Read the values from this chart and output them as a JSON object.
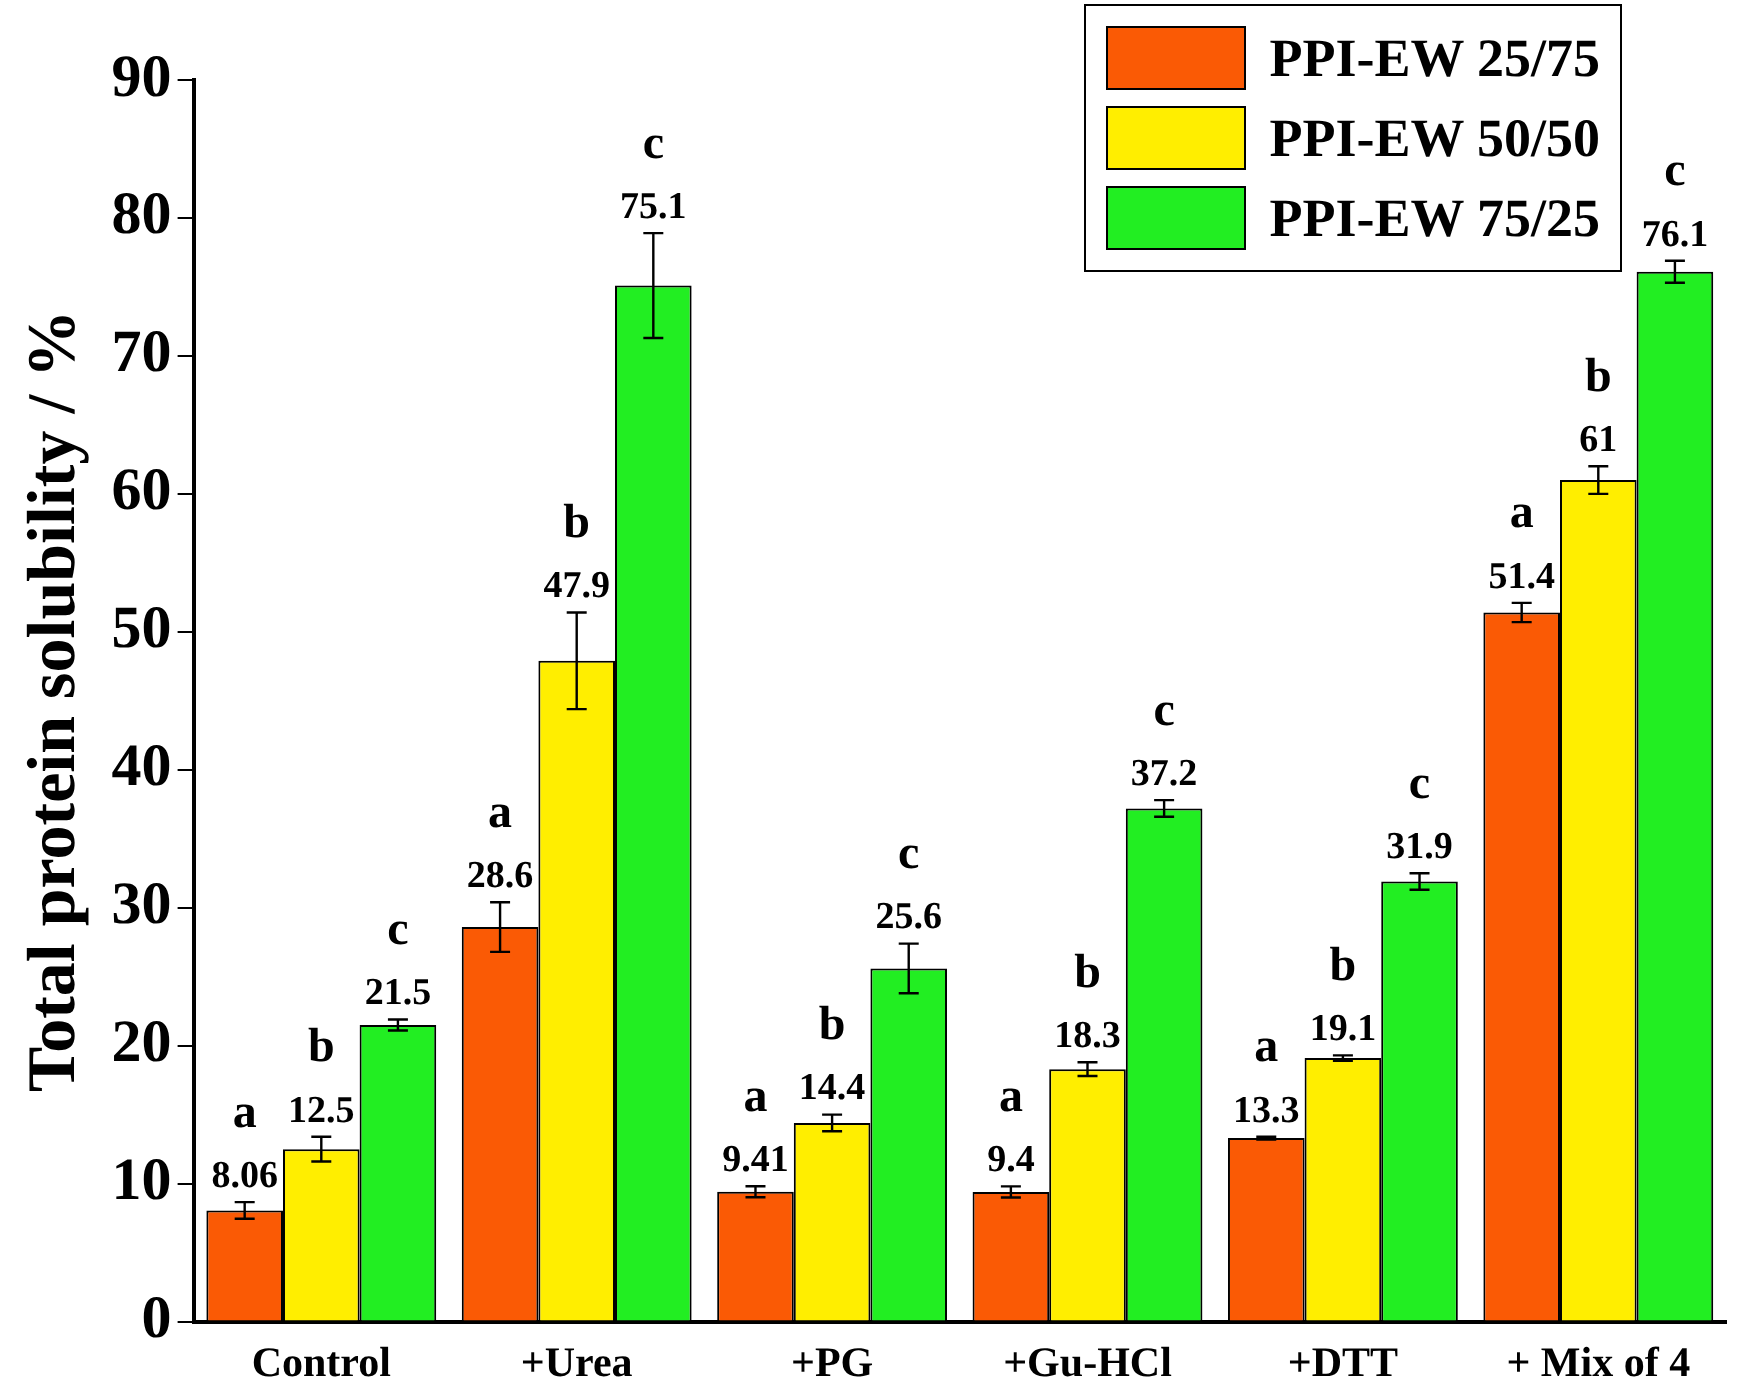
{
  "chart_data": {
    "type": "bar",
    "ylabel": "Total protein solubility / %",
    "categories": [
      "Control",
      "+Urea",
      "+PG",
      "+Gu-HCl",
      "+DTT",
      "+ Mix of 4"
    ],
    "series": [
      {
        "name": "PPI-EW 25/75",
        "color": "#fa5a05",
        "values": [
          8.06,
          28.6,
          9.41,
          9.4,
          13.3,
          51.4
        ],
        "errors": [
          0.6,
          1.8,
          0.4,
          0.4,
          0.1,
          0.7
        ]
      },
      {
        "name": "PPI-EW 50/50",
        "color": "#ffee00",
        "values": [
          12.5,
          47.9,
          14.4,
          18.3,
          19.1,
          61
        ],
        "errors": [
          0.9,
          3.5,
          0.6,
          0.5,
          0.2,
          1.0
        ]
      },
      {
        "name": "PPI-EW 75/25",
        "color": "#22ee22",
        "values": [
          21.5,
          75.1,
          25.6,
          37.2,
          31.9,
          76.1
        ],
        "errors": [
          0.4,
          3.8,
          1.8,
          0.6,
          0.6,
          0.8
        ]
      }
    ],
    "ylim": [
      0,
      90
    ],
    "yticks": [
      0,
      10,
      20,
      30,
      40,
      50,
      60,
      70,
      80,
      90
    ],
    "grid": false,
    "legend": "top right",
    "data_labels": true,
    "annotations": [
      "a",
      "b",
      "c",
      "a",
      "b",
      "c",
      "a",
      "b",
      "c",
      "a",
      "b",
      "c",
      "a",
      "b",
      "c",
      "a",
      "b",
      "c"
    ]
  }
}
